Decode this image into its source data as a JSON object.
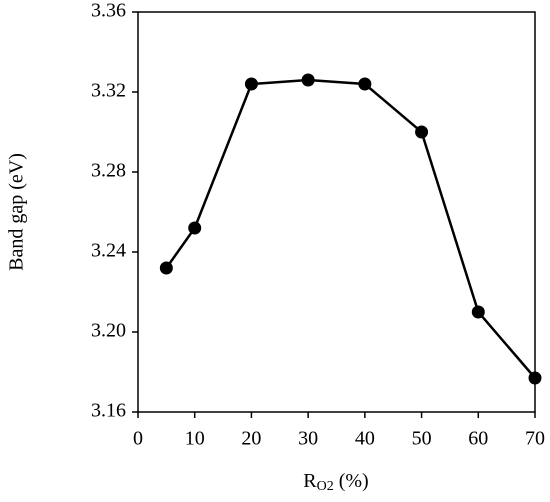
{
  "chart_data": {
    "type": "line",
    "y_label": "Band gap (eV)",
    "x_label": {
      "main": "R",
      "sub": "O2",
      "rest": " (%)"
    },
    "x": [
      5,
      10,
      20,
      30,
      40,
      50,
      60,
      70
    ],
    "series": [
      {
        "color": "#000000",
        "values": [
          3.232,
          3.252,
          3.324,
          3.326,
          3.324,
          3.3,
          3.21,
          3.177
        ]
      }
    ],
    "xlim": [
      0,
      70
    ],
    "xticks": [
      0,
      10,
      20,
      30,
      40,
      50,
      60,
      70
    ],
    "ylim": [
      3.16,
      3.36
    ],
    "yticks": [
      3.16,
      {
        "value": 3.2,
        "label": "3.20"
      },
      3.24,
      3.28,
      3.32,
      3.36
    ],
    "grid": false
  }
}
